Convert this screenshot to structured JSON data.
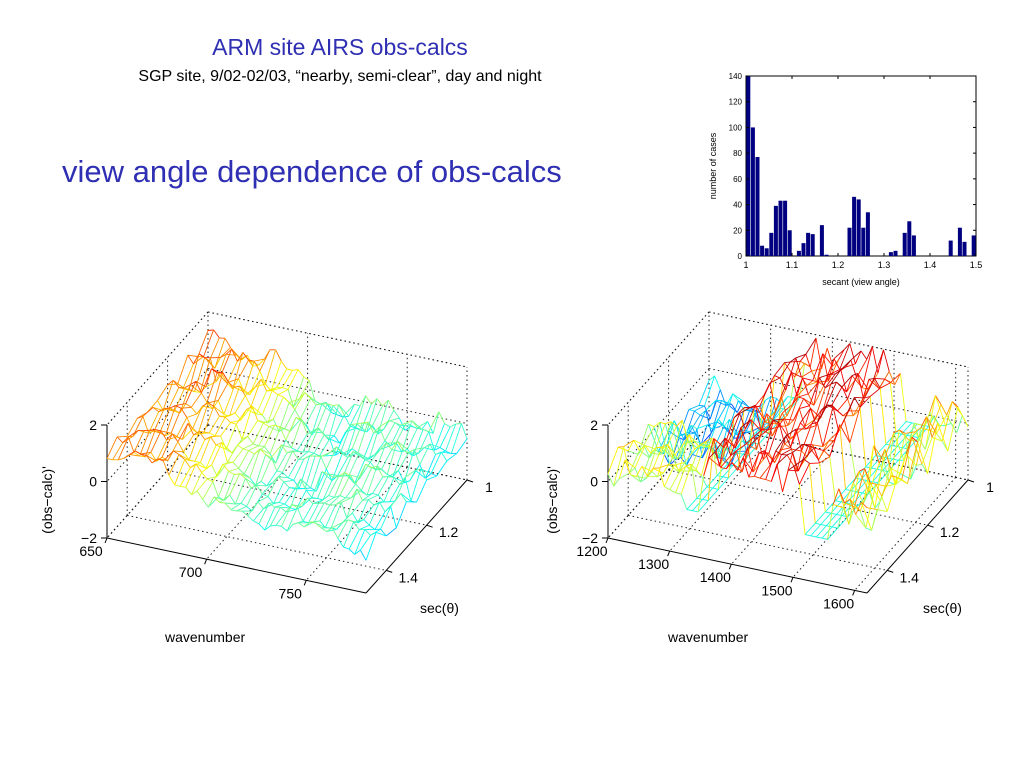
{
  "slide": {
    "title": "ARM site AIRS obs-calcs",
    "subtitle": "SGP site, 9/02-02/03, “nearby, semi-clear”, day and night",
    "heading": "view angle dependence of obs-calcs"
  },
  "colors": {
    "title_blue": "#2f2fb3",
    "bar_navy": "#000080"
  },
  "chart_data": [
    {
      "type": "bar",
      "title": "",
      "xlabel": "secant (view angle)",
      "ylabel": "number of cases",
      "xlim": [
        1,
        1.5
      ],
      "ylim": [
        0,
        140
      ],
      "xticks": [
        "1",
        "1.1",
        "1.2",
        "1.3",
        "1.4",
        "1.5"
      ],
      "yticks": [
        "0",
        "20",
        "40",
        "60",
        "80",
        "100",
        "120",
        "140"
      ],
      "bin_width": 0.01,
      "bin_centers": [
        1.005,
        1.015,
        1.025,
        1.035,
        1.045,
        1.055,
        1.065,
        1.075,
        1.085,
        1.095,
        1.105,
        1.115,
        1.125,
        1.135,
        1.145,
        1.155,
        1.165,
        1.175,
        1.185,
        1.195,
        1.205,
        1.215,
        1.225,
        1.235,
        1.245,
        1.255,
        1.265,
        1.275,
        1.285,
        1.295,
        1.305,
        1.315,
        1.325,
        1.335,
        1.345,
        1.355,
        1.365,
        1.375,
        1.385,
        1.395,
        1.405,
        1.415,
        1.425,
        1.435,
        1.445,
        1.455,
        1.465,
        1.475,
        1.485,
        1.495
      ],
      "values": [
        140,
        100,
        77,
        8,
        6,
        18,
        39,
        43,
        43,
        20,
        0,
        4,
        10,
        18,
        17,
        0,
        24,
        1,
        0,
        0,
        0,
        0,
        22,
        46,
        44,
        22,
        34,
        0,
        0,
        0,
        0,
        3,
        4,
        0,
        18,
        27,
        16,
        0,
        0,
        0,
        0,
        0,
        0,
        0,
        12,
        0,
        22,
        11,
        0,
        16
      ],
      "grid": false
    },
    {
      "type": "surface",
      "zlabel": "(obs−calc)'",
      "xlabel": "wavenumber",
      "ylabel": "sec(θ)",
      "xlim": [
        650,
        780
      ],
      "ylim": [
        1,
        1.5
      ],
      "zlim": [
        -2,
        2
      ],
      "xticks": [
        "650",
        "700",
        "750"
      ],
      "yticks": [
        "1",
        "1.2",
        "1.4"
      ],
      "zticks": [
        "2",
        "0",
        "−2"
      ],
      "grid": true
    },
    {
      "type": "surface",
      "zlabel": "(obs−calc)'",
      "xlabel": "wavenumber",
      "ylabel": "sec(θ)",
      "xlim": [
        1200,
        1620
      ],
      "ylim": [
        1,
        1.5
      ],
      "zlim": [
        -2,
        2
      ],
      "xticks": [
        "1200",
        "1300",
        "1400",
        "1500",
        "1600"
      ],
      "yticks": [
        "1",
        "1.2",
        "1.4"
      ],
      "zticks": [
        "2",
        "0",
        "−2"
      ],
      "grid": true
    }
  ]
}
